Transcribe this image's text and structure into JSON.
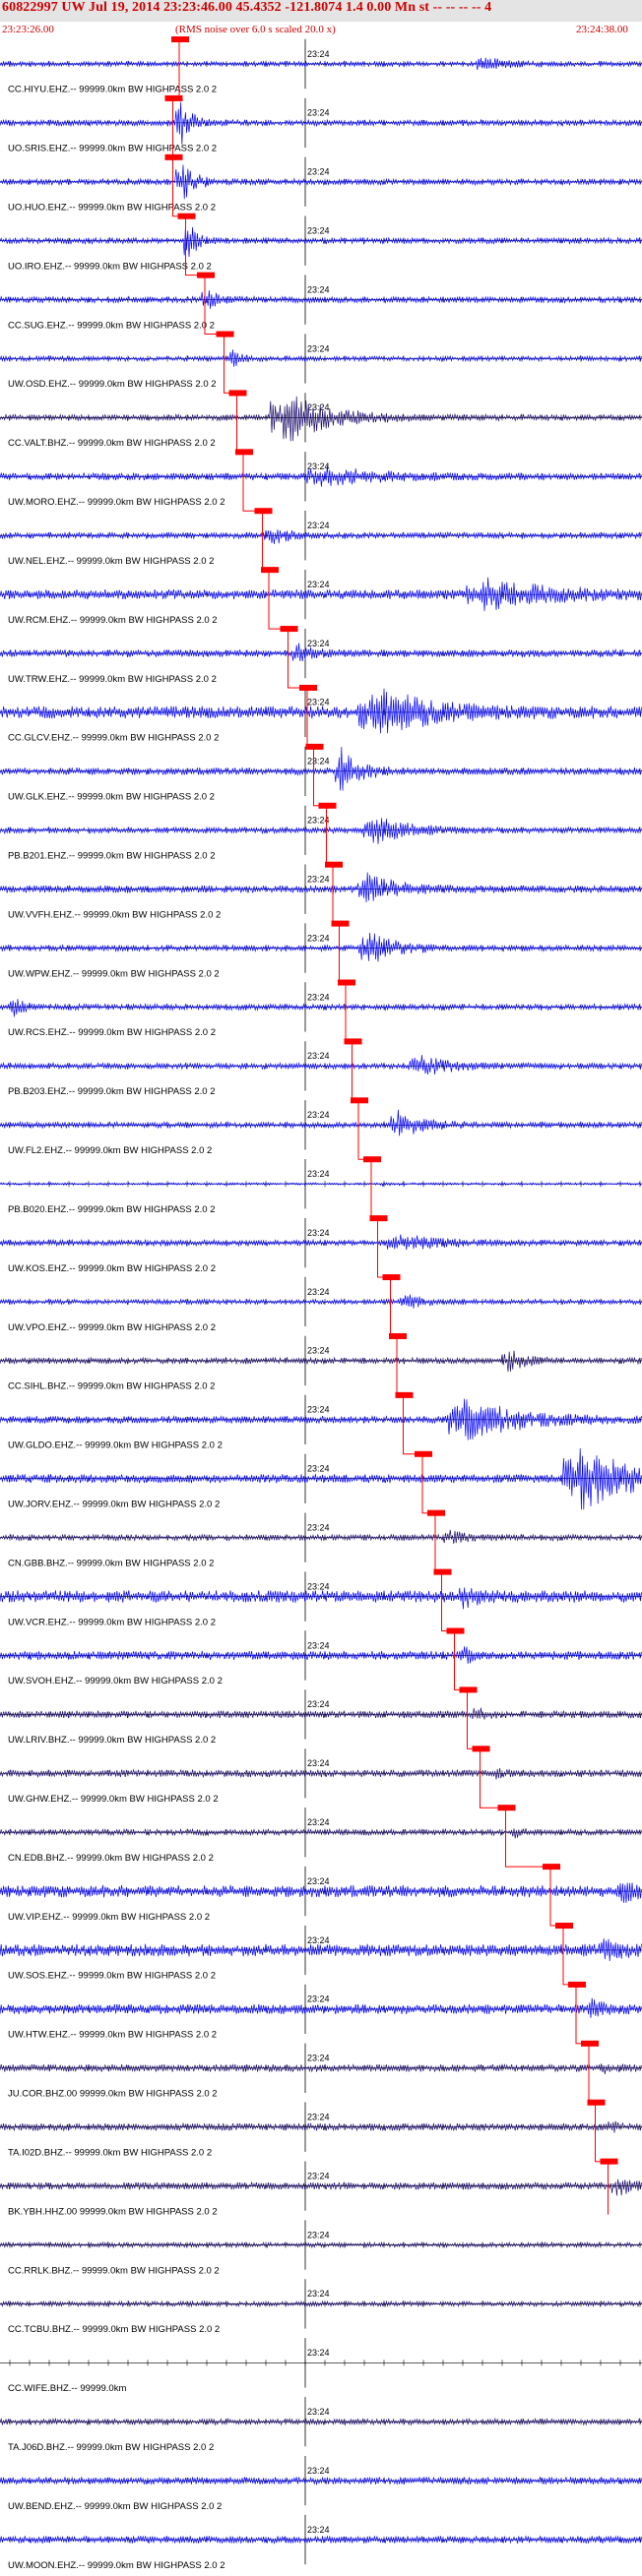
{
  "header": {
    "title": "60822997 UW Jul 19, 2014 23:23:46.00   45.4352 -121.8074  1.4 0.00 Mn st -- -- -- -- 4",
    "start_time": "23:23:26.00",
    "rms_note": "(RMS noise over 6.0 s scaled 20.0 x)",
    "end_time": "23:24:38.00"
  },
  "colors": {
    "trace": "#0000ff",
    "trace_dark": "#1a0a6a",
    "pick": "#ff0000",
    "grid": "#000000"
  },
  "chart_data": {
    "type": "line",
    "title": "60822997 UW Jul 19, 2014 23:23:46.00",
    "x_range": [
      "23:23:26.00",
      "23:24:38.00"
    ],
    "tick_label": "23:24",
    "channels": [
      {
        "label": "CC.HIYU.EHZ.-- 99999.0km BW HIGHPASS 2.0 2",
        "pick_time": 0.28,
        "amp": 0.1,
        "burst": [
          0.75,
          0.05,
          0.3
        ],
        "dark": false
      },
      {
        "label": "UO.SRIS.EHZ.-- 99999.0km BW HIGHPASS 2.0 2",
        "pick_time": 0.27,
        "amp": 0.12,
        "burst": [
          0.28,
          0.03,
          1.0
        ],
        "dark": false
      },
      {
        "label": "UO.HUO.EHZ.-- 99999.0km BW HIGHPASS 2.0 2",
        "pick_time": 0.27,
        "amp": 0.12,
        "burst": [
          0.28,
          0.03,
          1.0
        ],
        "dark": false
      },
      {
        "label": "UO.IRO.EHZ.-- 99999.0km BW HIGHPASS 2.0 2",
        "pick_time": 0.29,
        "amp": 0.12,
        "burst": [
          0.29,
          0.02,
          1.0
        ],
        "dark": false
      },
      {
        "label": "CC.SUG.EHZ.-- 99999.0km BW HIGHPASS 2.0 2",
        "pick_time": 0.32,
        "amp": 0.12,
        "burst": [
          0.32,
          0.03,
          0.4
        ],
        "dark": false
      },
      {
        "label": "UW.OSD.EHZ.-- 99999.0km BW HIGHPASS 2.0 2",
        "pick_time": 0.35,
        "amp": 0.1,
        "burst": [
          0.36,
          0.02,
          0.5
        ],
        "dark": false
      },
      {
        "label": "CC.VALT.BHZ.-- 99999.0km BW HIGHPASS 2.0 2",
        "pick_time": 0.37,
        "amp": 0.12,
        "burst": [
          0.44,
          0.1,
          1.1
        ],
        "dark": true
      },
      {
        "label": "UW.MORO.EHZ.-- 99999.0km BW HIGHPASS 2.0 2",
        "pick_time": 0.38,
        "amp": 0.15,
        "burst": [
          0.5,
          0.12,
          0.35
        ],
        "dark": false
      },
      {
        "label": "UW.NEL.EHZ.-- 99999.0km BW HIGHPASS 2.0 2",
        "pick_time": 0.41,
        "amp": 0.12,
        "burst": [
          0.42,
          0.04,
          0.4
        ],
        "dark": false
      },
      {
        "label": "UW.RCM.EHZ.-- 99999.0km BW HIGHPASS 2.0 2",
        "pick_time": 0.42,
        "amp": 0.2,
        "burst": [
          0.75,
          0.15,
          0.55
        ],
        "dark": false
      },
      {
        "label": "UW.TRW.EHZ.-- 99999.0km BW HIGHPASS 2.0 2",
        "pick_time": 0.45,
        "amp": 0.15,
        "burst": [
          0.46,
          0.03,
          0.4
        ],
        "dark": false
      },
      {
        "label": "CC.GLCV.EHZ.-- 99999.0km BW HIGHPASS 2.0 2",
        "pick_time": 0.48,
        "amp": 0.25,
        "burst": [
          0.58,
          0.12,
          1.0
        ],
        "dark": false
      },
      {
        "label": "UW.GLK.EHZ.-- 99999.0km BW HIGHPASS 2.0 2",
        "pick_time": 0.49,
        "amp": 0.15,
        "burst": [
          0.53,
          0.04,
          1.0
        ],
        "dark": false
      },
      {
        "label": "PB.B201.EHZ.-- 99999.0km BW HIGHPASS 2.0 2",
        "pick_time": 0.51,
        "amp": 0.12,
        "burst": [
          0.58,
          0.07,
          0.7
        ],
        "dark": false
      },
      {
        "label": "UW.VVFH.EHZ.-- 99999.0km BW HIGHPASS 2.0 2",
        "pick_time": 0.52,
        "amp": 0.15,
        "burst": [
          0.57,
          0.07,
          0.6
        ],
        "dark": false
      },
      {
        "label": "UW.WPW.EHZ.-- 99999.0km BW HIGHPASS 2.0 2",
        "pick_time": 0.53,
        "amp": 0.12,
        "burst": [
          0.57,
          0.06,
          0.8
        ],
        "dark": false
      },
      {
        "label": "UW.RCS.EHZ.-- 99999.0km BW HIGHPASS 2.0 2",
        "pick_time": 0.54,
        "amp": 0.12,
        "burst": [
          0.02,
          0.02,
          0.5
        ],
        "dark": false
      },
      {
        "label": "PB.B203.EHZ.-- 99999.0km BW HIGHPASS 2.0 2",
        "pick_time": 0.55,
        "amp": 0.12,
        "burst": [
          0.65,
          0.07,
          0.45
        ],
        "dark": false
      },
      {
        "label": "UW.FL2.EHZ.-- 99999.0km BW HIGHPASS 2.0 2",
        "pick_time": 0.56,
        "amp": 0.12,
        "burst": [
          0.62,
          0.06,
          0.5
        ],
        "dark": false
      },
      {
        "label": "PB.B020.EHZ.-- 99999.0km BW HIGHPASS 2.0 2",
        "pick_time": 0.58,
        "amp": 0.05,
        "burst": [
          0.6,
          0.02,
          0.08
        ],
        "dark": false
      },
      {
        "label": "UW.KOS.EHZ.-- 99999.0km BW HIGHPASS 2.0 2",
        "pick_time": 0.59,
        "amp": 0.12,
        "burst": [
          0.62,
          0.1,
          0.3
        ],
        "dark": false
      },
      {
        "label": "UW.VPO.EHZ.-- 99999.0km BW HIGHPASS 2.0 2",
        "pick_time": 0.61,
        "amp": 0.1,
        "burst": [
          0.63,
          0.04,
          0.3
        ],
        "dark": false
      },
      {
        "label": "CC.SIHL.BHZ.-- 99999.0km BW HIGHPASS 2.0 2",
        "pick_time": 0.62,
        "amp": 0.12,
        "burst": [
          0.79,
          0.04,
          0.45
        ],
        "dark": true
      },
      {
        "label": "UW.GLDO.EHZ.-- 99999.0km BW HIGHPASS 2.0 2",
        "pick_time": 0.63,
        "amp": 0.15,
        "burst": [
          0.72,
          0.12,
          0.9
        ],
        "dark": false
      },
      {
        "label": "UW.JORV.EHZ.-- 99999.0km BW HIGHPASS 2.0 2",
        "pick_time": 0.66,
        "amp": 0.18,
        "burst": [
          0.9,
          0.12,
          1.3
        ],
        "dark": false
      },
      {
        "label": "CN.GBB.BHZ.-- 99999.0km BW HIGHPASS 2.0 2",
        "pick_time": 0.68,
        "amp": 0.12,
        "burst": [
          0.7,
          0.05,
          0.2
        ],
        "dark": true
      },
      {
        "label": "UW.VCR.EHZ.-- 99999.0km BW HIGHPASS 2.0 2",
        "pick_time": 0.69,
        "amp": 0.25,
        "burst": [
          0.72,
          0.05,
          0.3
        ],
        "dark": false
      },
      {
        "label": "UW.SVOH.EHZ.-- 99999.0km BW HIGHPASS 2.0 2",
        "pick_time": 0.71,
        "amp": 0.18,
        "burst": [
          0.72,
          0.02,
          0.4
        ],
        "dark": false
      },
      {
        "label": "UW.LRIV.BHZ.-- 99999.0km BW HIGHPASS 2.0 2",
        "pick_time": 0.73,
        "amp": 0.15,
        "burst": [
          0.74,
          0.02,
          0.25
        ],
        "dark": true
      },
      {
        "label": "UW.GHW.EHZ.-- 99999.0km BW HIGHPASS 2.0 2",
        "pick_time": 0.75,
        "amp": 0.15,
        "burst": [
          0.77,
          0.02,
          0.2
        ],
        "dark": true
      },
      {
        "label": "CN.EDB.BHZ.-- 99999.0km BW HIGHPASS 2.0 2",
        "pick_time": 0.79,
        "amp": 0.12,
        "burst": [
          0.8,
          0.02,
          0.2
        ],
        "dark": true
      },
      {
        "label": "UW.VIP.EHZ.-- 99999.0km BW HIGHPASS 2.0 2",
        "pick_time": 0.86,
        "amp": 0.25,
        "burst": [
          0.97,
          0.03,
          0.4
        ],
        "dark": false
      },
      {
        "label": "UW.SOS.EHZ.-- 99999.0km BW HIGHPASS 2.0 2",
        "pick_time": 0.88,
        "amp": 0.25,
        "burst": [
          0.94,
          0.04,
          0.3
        ],
        "dark": false
      },
      {
        "label": "UW.HTW.EHZ.-- 99999.0km BW HIGHPASS 2.0 2",
        "pick_time": 0.9,
        "amp": 0.2,
        "burst": [
          0.92,
          0.03,
          0.3
        ],
        "dark": false
      },
      {
        "label": "JU.COR.BHZ.00 99999.0km BW HIGHPASS 2.0 2",
        "pick_time": 0.92,
        "amp": 0.15,
        "burst": [
          0.94,
          0.02,
          0.2
        ],
        "dark": true
      },
      {
        "label": "TA.I02D.BHZ.-- 99999.0km BW HIGHPASS 2.0 2",
        "pick_time": 0.93,
        "amp": 0.15,
        "burst": [
          0.95,
          0.02,
          0.2
        ],
        "dark": true
      },
      {
        "label": "BK.YBH.HHZ.00 99999.0km BW HIGHPASS 2.0 2",
        "pick_time": 0.95,
        "amp": 0.15,
        "burst": [
          0.96,
          0.04,
          0.35
        ],
        "dark": true
      },
      {
        "label": "CC.RRLK.BHZ.-- 99999.0km BW HIGHPASS 2.0 2",
        "pick_time": null,
        "amp": 0.1,
        "burst": null,
        "dark": true
      },
      {
        "label": "CC.TCBU.BHZ.-- 99999.0km BW HIGHPASS 2.0 2",
        "pick_time": null,
        "amp": 0.1,
        "burst": null,
        "dark": true
      },
      {
        "label": "CC.WIFE.BHZ.-- 99999.0km",
        "pick_time": null,
        "amp": 0.0,
        "burst": null,
        "dark": true
      },
      {
        "label": "TA.J06D.BHZ.-- 99999.0km BW HIGHPASS 2.0 2",
        "pick_time": null,
        "amp": 0.12,
        "burst": null,
        "dark": true
      },
      {
        "label": "UW.BEND.EHZ.-- 99999.0km BW HIGHPASS 2.0 2",
        "pick_time": null,
        "amp": 0.15,
        "burst": null,
        "dark": false
      },
      {
        "label": "UW.MOON.EHZ.-- 99999.0km BW HIGHPASS 2.0 2",
        "pick_time": null,
        "amp": 0.15,
        "burst": null,
        "dark": false
      }
    ]
  }
}
